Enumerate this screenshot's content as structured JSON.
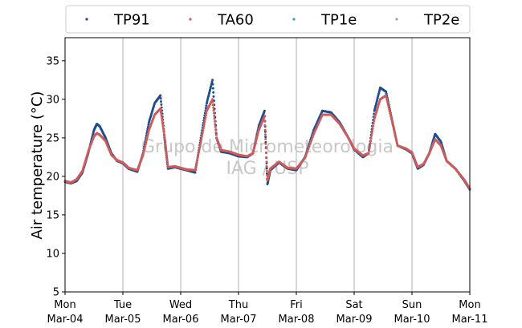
{
  "chart_data": {
    "type": "scatter",
    "title": "",
    "xlabel": "",
    "ylabel": "Air temperature (°C)",
    "ylim": [
      5,
      38
    ],
    "yticks": [
      5,
      10,
      15,
      20,
      25,
      30,
      35
    ],
    "xlim": [
      0,
      7
    ],
    "x_unit": "days from Mon Mar-04 00:00",
    "xticks": [
      {
        "day": "Mon",
        "date": "Mar-04"
      },
      {
        "day": "Tue",
        "date": "Mar-05"
      },
      {
        "day": "Wed",
        "date": "Mar-06"
      },
      {
        "day": "Thu",
        "date": "Mar-07"
      },
      {
        "day": "Fri",
        "date": "Mar-08"
      },
      {
        "day": "Sat",
        "date": "Mar-09"
      },
      {
        "day": "Sun",
        "date": "Mar-10"
      },
      {
        "day": "Mon",
        "date": "Mar-11"
      }
    ],
    "grid": "vertical",
    "legend_position": "top",
    "watermark": [
      "Grupo de Micrometeorologia",
      "IAG / USP"
    ],
    "series": [
      {
        "name": "TP91",
        "color": "#1f4e8c",
        "points": [
          [
            0.0,
            19.3
          ],
          [
            0.1,
            19.1
          ],
          [
            0.2,
            19.4
          ],
          [
            0.3,
            20.5
          ],
          [
            0.4,
            23.0
          ],
          [
            0.5,
            26.0
          ],
          [
            0.55,
            26.8
          ],
          [
            0.6,
            26.5
          ],
          [
            0.7,
            25.0
          ],
          [
            0.8,
            23.0
          ],
          [
            0.9,
            22.0
          ],
          [
            1.0,
            21.7
          ],
          [
            1.1,
            21.0
          ],
          [
            1.25,
            20.6
          ],
          [
            1.35,
            23.0
          ],
          [
            1.45,
            27.0
          ],
          [
            1.55,
            29.5
          ],
          [
            1.65,
            30.5
          ],
          [
            1.72,
            25.0
          ],
          [
            1.78,
            21.0
          ],
          [
            1.9,
            21.2
          ],
          [
            2.0,
            21.0
          ],
          [
            2.1,
            20.8
          ],
          [
            2.25,
            20.5
          ],
          [
            2.35,
            25.0
          ],
          [
            2.45,
            29.5
          ],
          [
            2.55,
            32.5
          ],
          [
            2.62,
            25.0
          ],
          [
            2.7,
            23.2
          ],
          [
            2.85,
            23.0
          ],
          [
            3.0,
            22.6
          ],
          [
            3.15,
            22.5
          ],
          [
            3.25,
            23.0
          ],
          [
            3.35,
            26.5
          ],
          [
            3.45,
            28.5
          ],
          [
            3.5,
            19.0
          ],
          [
            3.55,
            20.8
          ],
          [
            3.7,
            21.8
          ],
          [
            3.85,
            21.0
          ],
          [
            4.0,
            20.8
          ],
          [
            4.15,
            22.5
          ],
          [
            4.3,
            26.0
          ],
          [
            4.45,
            28.5
          ],
          [
            4.6,
            28.3
          ],
          [
            4.75,
            27.0
          ],
          [
            4.9,
            25.0
          ],
          [
            5.0,
            23.5
          ],
          [
            5.15,
            22.5
          ],
          [
            5.25,
            23.0
          ],
          [
            5.35,
            28.5
          ],
          [
            5.45,
            31.5
          ],
          [
            5.55,
            31.0
          ],
          [
            5.65,
            27.5
          ],
          [
            5.75,
            24.0
          ],
          [
            5.9,
            23.5
          ],
          [
            6.0,
            23.0
          ],
          [
            6.1,
            21.0
          ],
          [
            6.2,
            21.5
          ],
          [
            6.3,
            23.0
          ],
          [
            6.4,
            25.5
          ],
          [
            6.5,
            24.5
          ],
          [
            6.6,
            22.0
          ],
          [
            6.75,
            21.0
          ],
          [
            6.9,
            19.5
          ],
          [
            7.0,
            18.3
          ]
        ]
      },
      {
        "name": "TA60",
        "color": "#cd5c5c",
        "points": [
          [
            0.0,
            19.4
          ],
          [
            0.1,
            19.2
          ],
          [
            0.2,
            19.6
          ],
          [
            0.3,
            20.7
          ],
          [
            0.4,
            23.2
          ],
          [
            0.5,
            25.2
          ],
          [
            0.55,
            25.6
          ],
          [
            0.6,
            25.4
          ],
          [
            0.7,
            24.6
          ],
          [
            0.8,
            22.8
          ],
          [
            0.9,
            22.1
          ],
          [
            1.0,
            21.8
          ],
          [
            1.1,
            21.1
          ],
          [
            1.25,
            20.8
          ],
          [
            1.35,
            22.8
          ],
          [
            1.45,
            26.0
          ],
          [
            1.55,
            28.0
          ],
          [
            1.65,
            28.8
          ],
          [
            1.72,
            25.2
          ],
          [
            1.78,
            21.2
          ],
          [
            1.9,
            21.3
          ],
          [
            2.0,
            21.1
          ],
          [
            2.1,
            20.9
          ],
          [
            2.25,
            20.8
          ],
          [
            2.35,
            24.5
          ],
          [
            2.45,
            28.5
          ],
          [
            2.55,
            30.0
          ],
          [
            2.62,
            25.0
          ],
          [
            2.7,
            23.4
          ],
          [
            2.85,
            23.2
          ],
          [
            3.0,
            22.8
          ],
          [
            3.15,
            22.6
          ],
          [
            3.25,
            23.0
          ],
          [
            3.35,
            26.0
          ],
          [
            3.45,
            27.8
          ],
          [
            3.5,
            19.5
          ],
          [
            3.55,
            21.0
          ],
          [
            3.7,
            21.9
          ],
          [
            3.85,
            21.1
          ],
          [
            4.0,
            21.0
          ],
          [
            4.15,
            22.4
          ],
          [
            4.3,
            25.5
          ],
          [
            4.45,
            28.0
          ],
          [
            4.6,
            28.0
          ],
          [
            4.75,
            26.8
          ],
          [
            4.9,
            25.0
          ],
          [
            5.0,
            23.6
          ],
          [
            5.15,
            22.7
          ],
          [
            5.25,
            23.0
          ],
          [
            5.35,
            27.5
          ],
          [
            5.45,
            30.0
          ],
          [
            5.55,
            30.5
          ],
          [
            5.65,
            27.3
          ],
          [
            5.75,
            24.0
          ],
          [
            5.9,
            23.6
          ],
          [
            6.0,
            23.1
          ],
          [
            6.1,
            21.2
          ],
          [
            6.2,
            21.6
          ],
          [
            6.3,
            23.0
          ],
          [
            6.4,
            24.8
          ],
          [
            6.5,
            24.0
          ],
          [
            6.6,
            22.0
          ],
          [
            6.75,
            21.0
          ],
          [
            6.9,
            19.6
          ],
          [
            7.0,
            18.4
          ]
        ]
      },
      {
        "name": "TP1e",
        "color": "#2ca5a5",
        "points": []
      },
      {
        "name": "TP2e",
        "color": "#a0a0a0",
        "points": []
      }
    ]
  }
}
